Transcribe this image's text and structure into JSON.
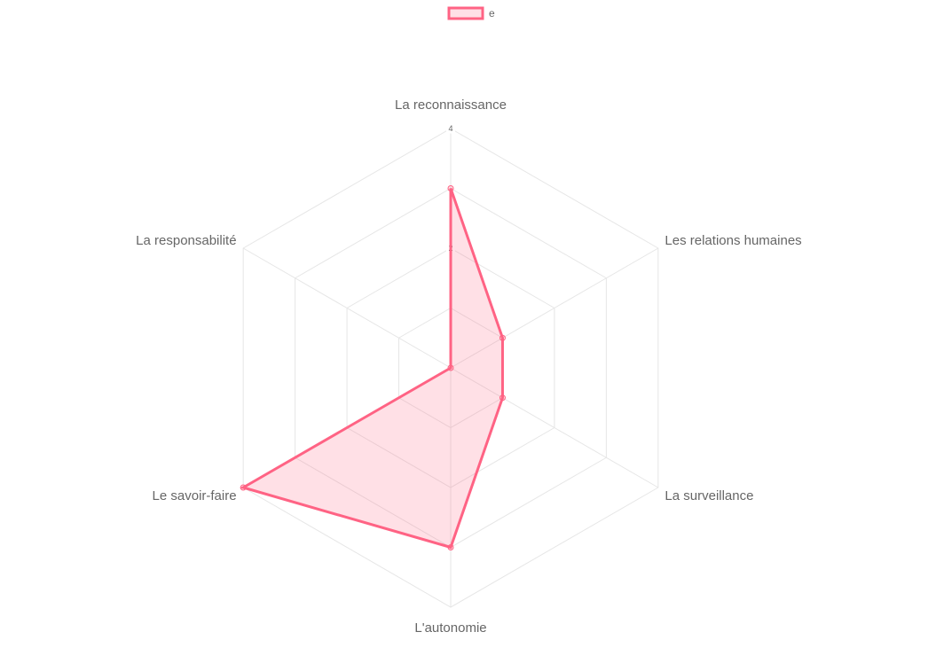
{
  "chart_data": {
    "type": "radar",
    "categories": [
      "La reconnaissance",
      "Les relations humaines",
      "La surveillance",
      "L'autonomie",
      "Le savoir-faire",
      "La responsabilité"
    ],
    "series": [
      {
        "name": "e",
        "values": [
          3,
          1,
          1,
          3,
          4,
          0
        ],
        "border_color": "#ff6384",
        "fill_color": "rgba(255, 99, 132, 0.2)"
      }
    ],
    "rlim": [
      0,
      4
    ],
    "ticks": [
      0,
      1,
      2,
      3,
      4
    ],
    "tick_labels_shown": [
      "2",
      "4"
    ],
    "grid": true,
    "legend_position": "top"
  }
}
